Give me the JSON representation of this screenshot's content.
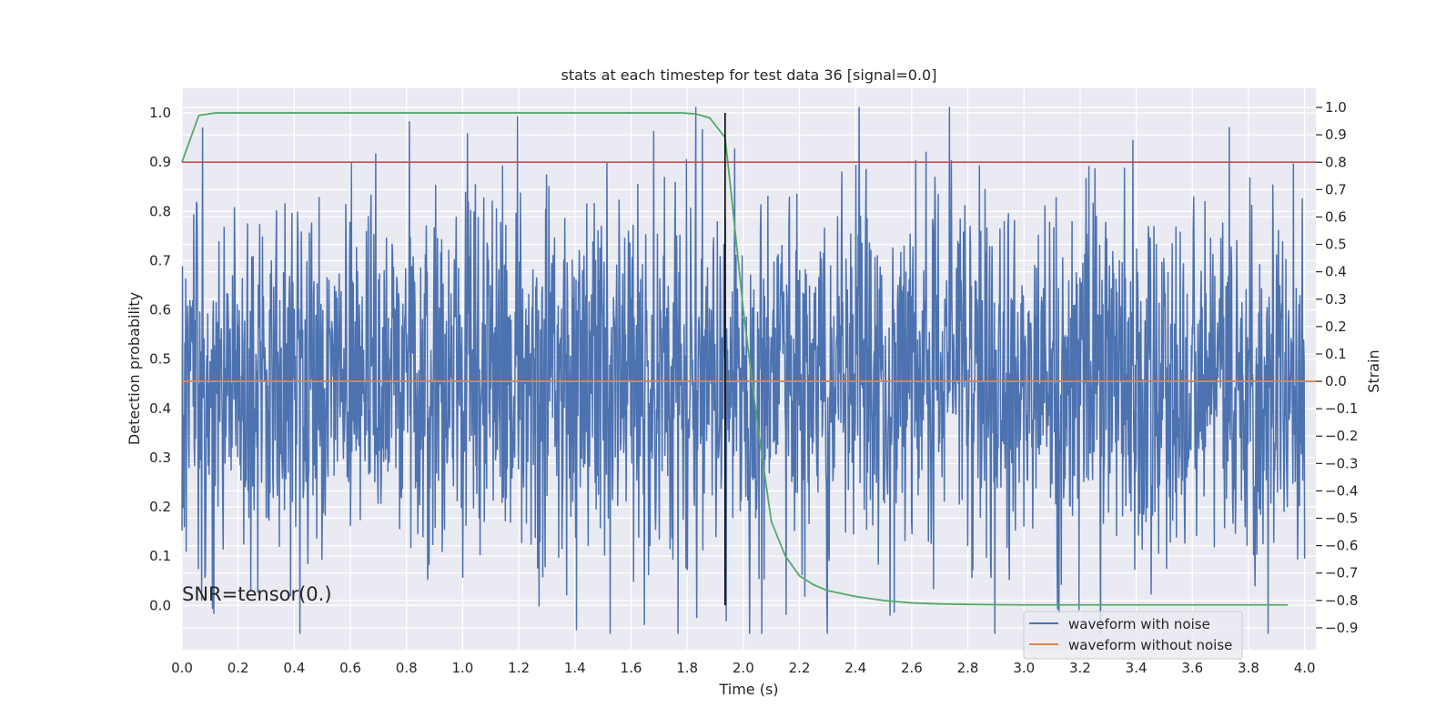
{
  "chart_data": {
    "type": "line",
    "title": "stats at each timestep for test data 36 [signal=0.0]",
    "xlabel": "Time (s)",
    "ylabel_left": "Detection probability",
    "ylabel_right": "Strain",
    "xlim": [
      0.0,
      4.04
    ],
    "ylim_left": [
      -0.09,
      1.05
    ],
    "ylim_right": [
      -0.98,
      1.07
    ],
    "x_ticks": [
      "0.0",
      "0.2",
      "0.4",
      "0.6",
      "0.8",
      "1.0",
      "1.2",
      "1.4",
      "1.6",
      "1.8",
      "2.0",
      "2.2",
      "2.4",
      "2.6",
      "2.8",
      "3.0",
      "3.2",
      "3.4",
      "3.6",
      "3.8",
      "4.0"
    ],
    "y_left_ticks": [
      "0.0",
      "0.1",
      "0.2",
      "0.3",
      "0.4",
      "0.5",
      "0.6",
      "0.7",
      "0.8",
      "0.9",
      "1.0"
    ],
    "y_right_ticks": [
      "−0.9",
      "−0.8",
      "−0.7",
      "−0.6",
      "−0.5",
      "−0.4",
      "−0.3",
      "−0.2",
      "−0.1",
      "0.0",
      "0.1",
      "0.2",
      "0.3",
      "0.4",
      "0.5",
      "0.6",
      "0.7",
      "0.8",
      "0.9",
      "1.0"
    ],
    "grid": true,
    "legend_position": "lower-right",
    "annotation": "SNR=tensor(0.)",
    "threshold": {
      "axis": "left",
      "value": 0.9,
      "color": "#c44e52"
    },
    "marker_time": {
      "value": 1.935,
      "color": "#000000"
    },
    "series": [
      {
        "name": "waveform with noise",
        "axis": "right",
        "color": "#4c72b0",
        "noise_std": 0.34,
        "x_start": 0.0,
        "x_end": 4.0,
        "n_points": 2400
      },
      {
        "name": "waveform without noise",
        "axis": "right",
        "color": "#dd8452",
        "x": [
          0.0,
          4.04
        ],
        "y": [
          0.0,
          0.0
        ]
      },
      {
        "axis": "left",
        "color": "#55a868",
        "x": [
          0.0,
          0.06,
          0.12,
          0.5,
          1.0,
          1.5,
          1.78,
          1.83,
          1.88,
          1.935,
          1.96,
          2.0,
          2.05,
          2.1,
          2.15,
          2.2,
          2.25,
          2.3,
          2.4,
          2.5,
          2.6,
          2.7,
          2.8,
          3.0,
          3.3,
          3.6,
          3.94
        ],
        "y": [
          0.9,
          0.995,
          1.0,
          1.0,
          1.0,
          1.0,
          1.0,
          0.998,
          0.99,
          0.95,
          0.82,
          0.6,
          0.37,
          0.17,
          0.1,
          0.06,
          0.042,
          0.03,
          0.018,
          0.01,
          0.005,
          0.003,
          0.002,
          0.001,
          0.001,
          0.001,
          0.001
        ]
      }
    ]
  }
}
